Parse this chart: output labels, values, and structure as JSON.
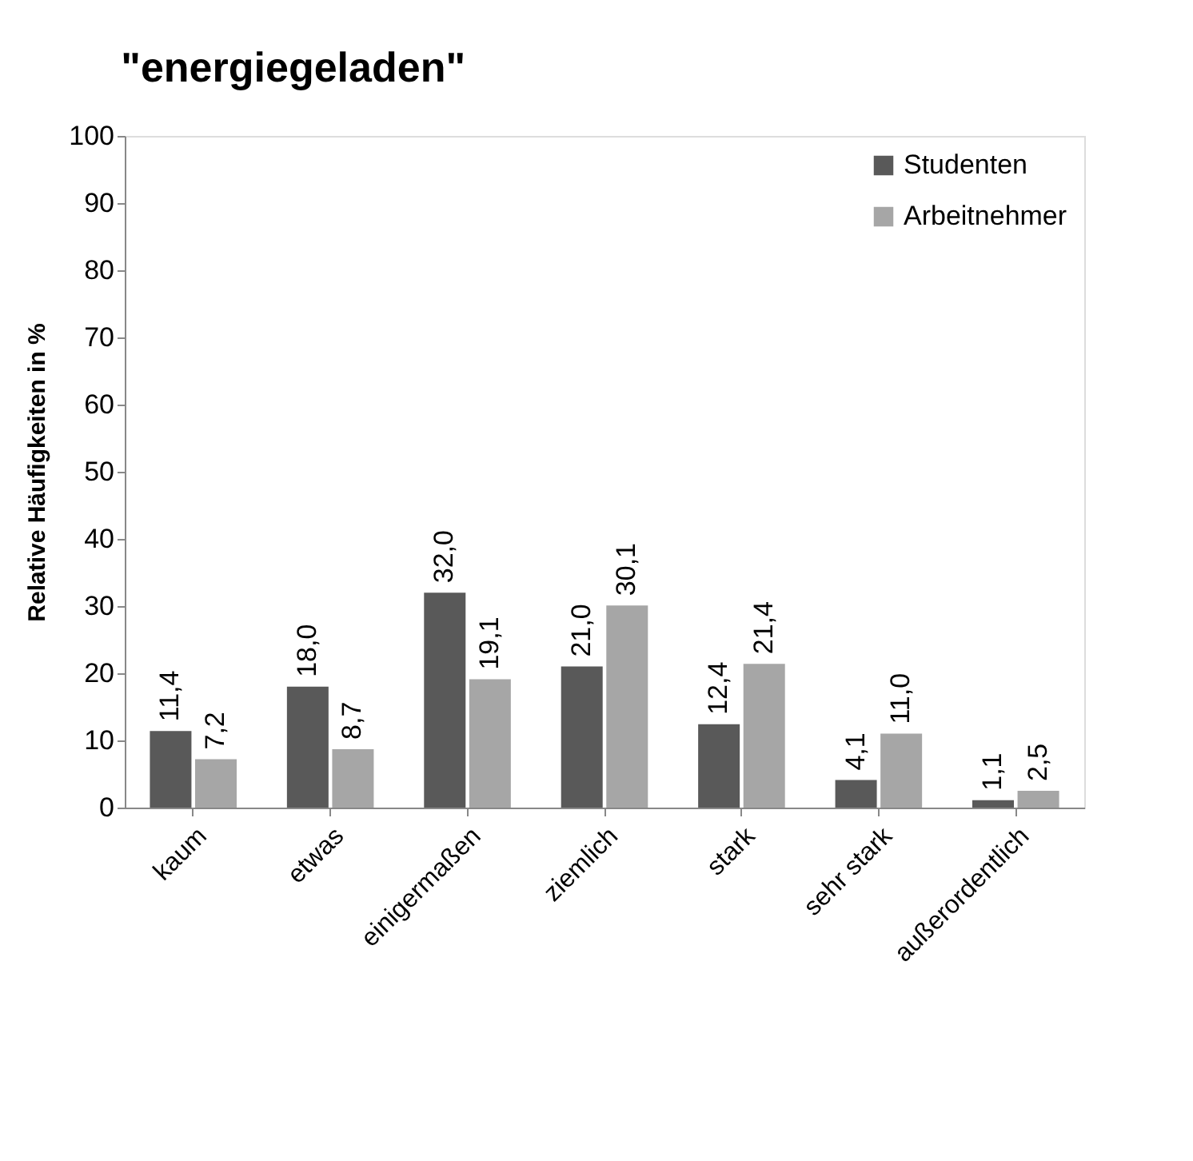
{
  "chart_data": {
    "type": "bar",
    "title": "\"energiegeladen\"",
    "ylabel": "Relative Häufigkeiten in %",
    "categories": [
      "kaum",
      "etwas",
      "einigermaßen",
      "ziemlich",
      "stark",
      "sehr stark",
      "außerordentlich"
    ],
    "series": [
      {
        "name": "Studenten",
        "color": "#595959",
        "values": [
          11.4,
          18.0,
          32.0,
          21.0,
          12.4,
          4.1,
          1.1
        ],
        "value_labels": [
          "11,4",
          "18,0",
          "32,0",
          "21,0",
          "12,4",
          "4,1",
          "1,1"
        ]
      },
      {
        "name": "Arbeitnehmer",
        "color": "#a6a6a6",
        "values": [
          7.2,
          8.7,
          19.1,
          30.1,
          21.4,
          11.0,
          2.5
        ],
        "value_labels": [
          "7,2",
          "8,7",
          "19,1",
          "30,1",
          "21,4",
          "11,0",
          "2,5"
        ]
      }
    ],
    "ylim": [
      0,
      100
    ],
    "yticks": [
      0,
      10,
      20,
      30,
      40,
      50,
      60,
      70,
      80,
      90,
      100
    ],
    "grid": false,
    "legend": "top right"
  }
}
